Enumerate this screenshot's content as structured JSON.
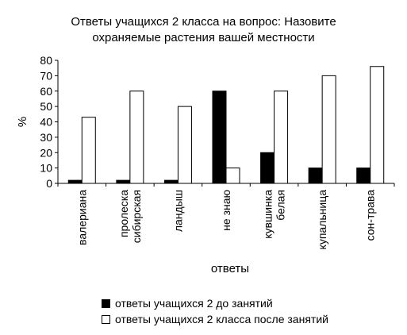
{
  "chart_data": {
    "type": "bar",
    "title_line1": "Ответы учащихся 2 класса на вопрос: Назовите",
    "title_line2": "охраняемые растения вашей местности",
    "xlabel": "ответы",
    "ylabel": "%",
    "ylim": [
      0,
      80
    ],
    "yticks": [
      "0",
      "10",
      "20",
      "30",
      "40",
      "50",
      "60",
      "70",
      "80"
    ],
    "categories": [
      [
        "валериана"
      ],
      [
        "пролеска",
        "сибирская"
      ],
      [
        "ландыш"
      ],
      [
        "не знаю"
      ],
      [
        "кувшинка",
        "белая"
      ],
      [
        "купальница"
      ],
      [
        "сон-трава"
      ]
    ],
    "series": [
      {
        "name": "ответы учащихся 2 до занятий",
        "color": "#000000",
        "values": [
          2,
          2,
          2,
          60,
          20,
          10,
          10
        ]
      },
      {
        "name": "ответы учащихся 2 класса после занятий",
        "color": "#ffffff",
        "values": [
          43,
          60,
          50,
          10,
          60,
          70,
          76
        ]
      }
    ],
    "grid": false,
    "legend_position": "bottom"
  }
}
